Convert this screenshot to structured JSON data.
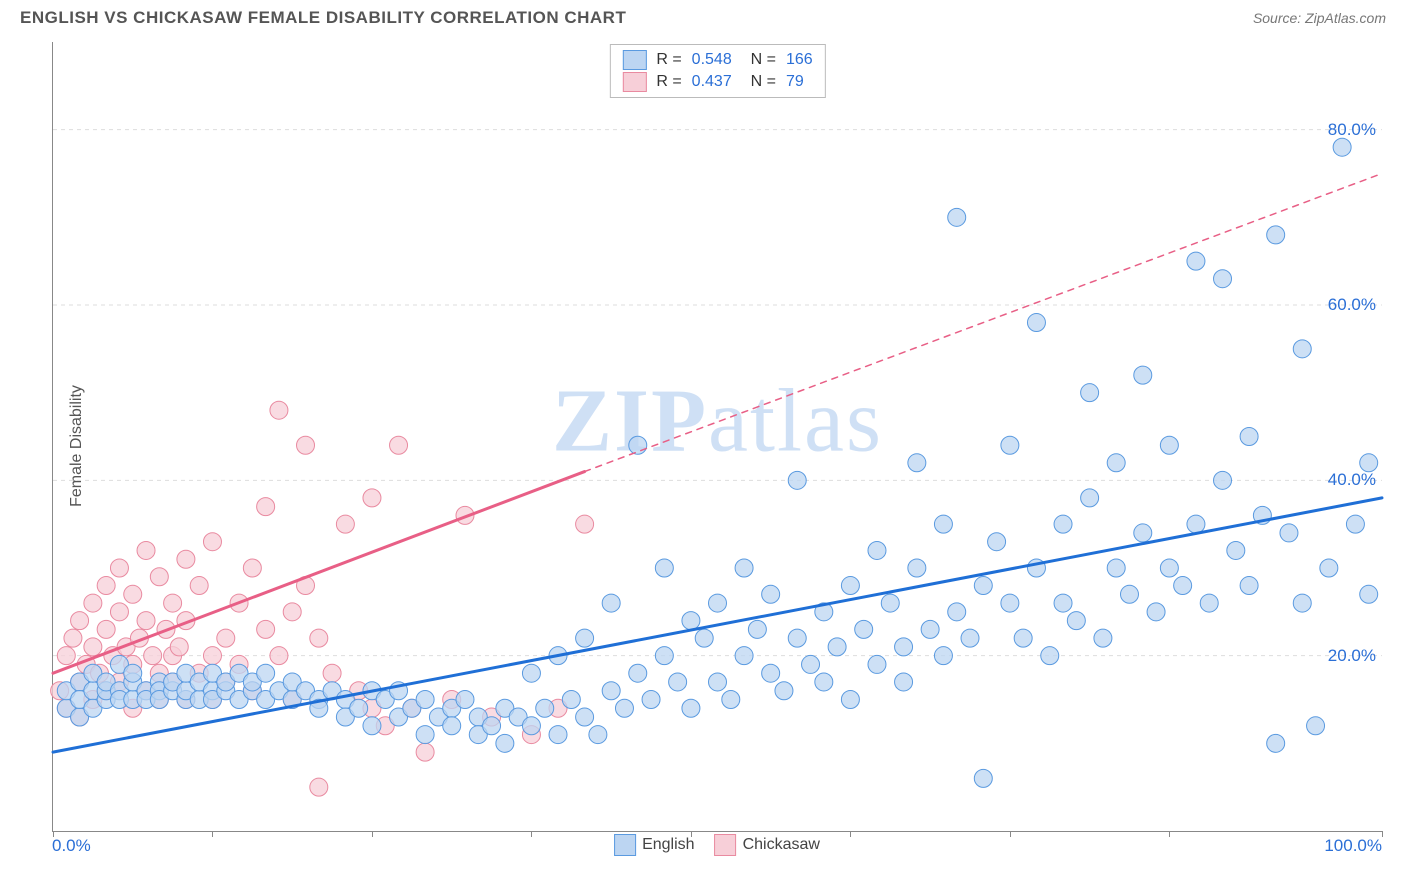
{
  "header": {
    "title": "ENGLISH VS CHICKASAW FEMALE DISABILITY CORRELATION CHART",
    "source": "Source: ZipAtlas.com"
  },
  "axes": {
    "y_title": "Female Disability",
    "xmin_label": "0.0%",
    "xmax_label": "100.0%",
    "xlim": [
      0,
      100
    ],
    "ylim": [
      0,
      90
    ],
    "y_ticks": [
      {
        "v": 20,
        "label": "20.0%"
      },
      {
        "v": 40,
        "label": "40.0%"
      },
      {
        "v": 60,
        "label": "60.0%"
      },
      {
        "v": 80,
        "label": "80.0%"
      }
    ],
    "x_ticks": [
      0,
      12,
      24,
      36,
      48,
      60,
      72,
      84,
      100
    ],
    "grid_color": "#dddddd",
    "axis_color": "#888888"
  },
  "watermark": {
    "zip": "ZIP",
    "atlas": "atlas"
  },
  "colors": {
    "blue_fill": "#bcd5f2",
    "blue_stroke": "#5a9ae0",
    "blue_line": "#1f6fd6",
    "pink_fill": "#f7cfd8",
    "pink_stroke": "#e98aa0",
    "pink_line": "#e85f86",
    "value_text": "#2b6fd6",
    "label_text": "#444444"
  },
  "top_legend": [
    {
      "r": "0.548",
      "n": "166",
      "fill": "#bcd5f2",
      "stroke": "#5a9ae0"
    },
    {
      "r": "0.437",
      "n": "79",
      "fill": "#f7cfd8",
      "stroke": "#e98aa0"
    }
  ],
  "bottom_legend": [
    {
      "label": "English",
      "fill": "#bcd5f2",
      "stroke": "#5a9ae0"
    },
    {
      "label": "Chickasaw",
      "fill": "#f7cfd8",
      "stroke": "#e98aa0"
    }
  ],
  "series": {
    "english": {
      "trend_solid": {
        "x1": 0,
        "y1": 9,
        "x2": 100,
        "y2": 38
      },
      "points": [
        [
          1,
          14
        ],
        [
          1,
          16
        ],
        [
          2,
          13
        ],
        [
          2,
          17
        ],
        [
          2,
          15
        ],
        [
          3,
          16
        ],
        [
          3,
          14
        ],
        [
          3,
          18
        ],
        [
          4,
          15
        ],
        [
          4,
          16
        ],
        [
          4,
          17
        ],
        [
          5,
          16
        ],
        [
          5,
          15
        ],
        [
          5,
          19
        ],
        [
          6,
          15
        ],
        [
          6,
          17
        ],
        [
          6,
          18
        ],
        [
          7,
          16
        ],
        [
          7,
          15
        ],
        [
          8,
          17
        ],
        [
          8,
          16
        ],
        [
          8,
          15
        ],
        [
          9,
          16
        ],
        [
          9,
          17
        ],
        [
          10,
          15
        ],
        [
          10,
          16
        ],
        [
          10,
          18
        ],
        [
          11,
          15
        ],
        [
          11,
          17
        ],
        [
          12,
          16
        ],
        [
          12,
          15
        ],
        [
          12,
          18
        ],
        [
          13,
          16
        ],
        [
          13,
          17
        ],
        [
          14,
          15
        ],
        [
          14,
          18
        ],
        [
          15,
          16
        ],
        [
          15,
          17
        ],
        [
          16,
          15
        ],
        [
          16,
          18
        ],
        [
          17,
          16
        ],
        [
          18,
          15
        ],
        [
          18,
          17
        ],
        [
          19,
          16
        ],
        [
          20,
          15
        ],
        [
          20,
          14
        ],
        [
          21,
          16
        ],
        [
          22,
          15
        ],
        [
          22,
          13
        ],
        [
          23,
          14
        ],
        [
          24,
          16
        ],
        [
          24,
          12
        ],
        [
          25,
          15
        ],
        [
          26,
          16
        ],
        [
          26,
          13
        ],
        [
          27,
          14
        ],
        [
          28,
          15
        ],
        [
          28,
          11
        ],
        [
          29,
          13
        ],
        [
          30,
          14
        ],
        [
          30,
          12
        ],
        [
          31,
          15
        ],
        [
          32,
          13
        ],
        [
          32,
          11
        ],
        [
          33,
          12
        ],
        [
          34,
          14
        ],
        [
          34,
          10
        ],
        [
          35,
          13
        ],
        [
          36,
          12
        ],
        [
          36,
          18
        ],
        [
          37,
          14
        ],
        [
          38,
          11
        ],
        [
          38,
          20
        ],
        [
          39,
          15
        ],
        [
          40,
          13
        ],
        [
          40,
          22
        ],
        [
          41,
          11
        ],
        [
          42,
          16
        ],
        [
          42,
          26
        ],
        [
          43,
          14
        ],
        [
          44,
          18
        ],
        [
          44,
          44
        ],
        [
          45,
          15
        ],
        [
          46,
          20
        ],
        [
          46,
          30
        ],
        [
          47,
          17
        ],
        [
          48,
          24
        ],
        [
          48,
          14
        ],
        [
          49,
          22
        ],
        [
          50,
          17
        ],
        [
          50,
          26
        ],
        [
          51,
          15
        ],
        [
          52,
          20
        ],
        [
          52,
          30
        ],
        [
          53,
          23
        ],
        [
          54,
          18
        ],
        [
          54,
          27
        ],
        [
          55,
          16
        ],
        [
          56,
          22
        ],
        [
          56,
          40
        ],
        [
          57,
          19
        ],
        [
          58,
          25
        ],
        [
          58,
          17
        ],
        [
          59,
          21
        ],
        [
          60,
          15
        ],
        [
          60,
          28
        ],
        [
          61,
          23
        ],
        [
          62,
          19
        ],
        [
          62,
          32
        ],
        [
          63,
          26
        ],
        [
          64,
          21
        ],
        [
          64,
          17
        ],
        [
          65,
          30
        ],
        [
          65,
          42
        ],
        [
          66,
          23
        ],
        [
          67,
          20
        ],
        [
          67,
          35
        ],
        [
          68,
          70
        ],
        [
          68,
          25
        ],
        [
          69,
          22
        ],
        [
          70,
          28
        ],
        [
          70,
          6
        ],
        [
          71,
          33
        ],
        [
          72,
          26
        ],
        [
          72,
          44
        ],
        [
          73,
          22
        ],
        [
          74,
          30
        ],
        [
          74,
          58
        ],
        [
          75,
          20
        ],
        [
          76,
          35
        ],
        [
          76,
          26
        ],
        [
          77,
          24
        ],
        [
          78,
          38
        ],
        [
          78,
          50
        ],
        [
          79,
          22
        ],
        [
          80,
          30
        ],
        [
          80,
          42
        ],
        [
          81,
          27
        ],
        [
          82,
          52
        ],
        [
          82,
          34
        ],
        [
          83,
          25
        ],
        [
          84,
          44
        ],
        [
          84,
          30
        ],
        [
          85,
          28
        ],
        [
          86,
          65
        ],
        [
          86,
          35
        ],
        [
          87,
          26
        ],
        [
          88,
          40
        ],
        [
          88,
          63
        ],
        [
          89,
          32
        ],
        [
          90,
          45
        ],
        [
          90,
          28
        ],
        [
          91,
          36
        ],
        [
          92,
          68
        ],
        [
          92,
          10
        ],
        [
          93,
          34
        ],
        [
          94,
          26
        ],
        [
          94,
          55
        ],
        [
          95,
          12
        ],
        [
          96,
          30
        ],
        [
          97,
          78
        ],
        [
          98,
          35
        ],
        [
          99,
          42
        ],
        [
          99,
          27
        ]
      ]
    },
    "chickasaw": {
      "trend_solid": {
        "x1": 0,
        "y1": 18,
        "x2": 40,
        "y2": 41
      },
      "trend_dashed": {
        "x1": 40,
        "y1": 41,
        "x2": 100,
        "y2": 75
      },
      "points": [
        [
          0.5,
          16
        ],
        [
          1,
          20
        ],
        [
          1,
          14
        ],
        [
          1.5,
          22
        ],
        [
          2,
          17
        ],
        [
          2,
          24
        ],
        [
          2,
          13
        ],
        [
          2.5,
          19
        ],
        [
          3,
          26
        ],
        [
          3,
          15
        ],
        [
          3,
          21
        ],
        [
          3.5,
          18
        ],
        [
          4,
          28
        ],
        [
          4,
          16
        ],
        [
          4,
          23
        ],
        [
          4.5,
          20
        ],
        [
          5,
          30
        ],
        [
          5,
          17
        ],
        [
          5,
          25
        ],
        [
          5.5,
          21
        ],
        [
          6,
          14
        ],
        [
          6,
          27
        ],
        [
          6,
          19
        ],
        [
          6.5,
          22
        ],
        [
          7,
          32
        ],
        [
          7,
          16
        ],
        [
          7,
          24
        ],
        [
          7.5,
          20
        ],
        [
          8,
          18
        ],
        [
          8,
          29
        ],
        [
          8,
          15
        ],
        [
          8.5,
          23
        ],
        [
          9,
          20
        ],
        [
          9,
          26
        ],
        [
          9,
          17
        ],
        [
          9.5,
          21
        ],
        [
          10,
          31
        ],
        [
          10,
          15
        ],
        [
          10,
          24
        ],
        [
          11,
          18
        ],
        [
          11,
          28
        ],
        [
          12,
          20
        ],
        [
          12,
          33
        ],
        [
          12,
          15
        ],
        [
          13,
          22
        ],
        [
          13,
          17
        ],
        [
          14,
          26
        ],
        [
          14,
          19
        ],
        [
          15,
          30
        ],
        [
          15,
          16
        ],
        [
          16,
          23
        ],
        [
          16,
          37
        ],
        [
          17,
          20
        ],
        [
          17,
          48
        ],
        [
          18,
          25
        ],
        [
          18,
          15
        ],
        [
          19,
          28
        ],
        [
          19,
          44
        ],
        [
          20,
          22
        ],
        [
          20,
          5
        ],
        [
          21,
          18
        ],
        [
          22,
          35
        ],
        [
          23,
          16
        ],
        [
          24,
          14
        ],
        [
          24,
          38
        ],
        [
          25,
          12
        ],
        [
          26,
          44
        ],
        [
          27,
          14
        ],
        [
          28,
          9
        ],
        [
          30,
          15
        ],
        [
          31,
          36
        ],
        [
          33,
          13
        ],
        [
          36,
          11
        ],
        [
          38,
          14
        ],
        [
          40,
          35
        ]
      ]
    }
  },
  "style": {
    "marker_radius": 9,
    "marker_opacity": 0.75,
    "line_width_solid": 3,
    "line_width_dashed": 1.5,
    "dash_pattern": "6,6"
  }
}
